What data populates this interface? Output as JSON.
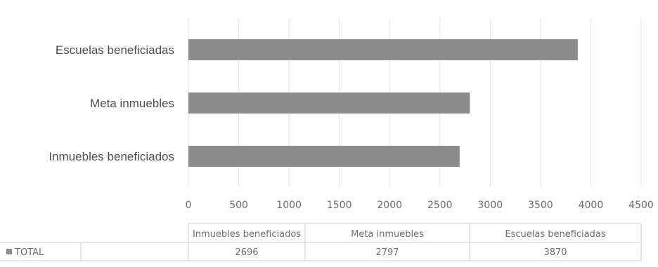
{
  "chart_data": {
    "type": "bar",
    "orientation": "horizontal",
    "title": "",
    "categories": [
      "Escuelas beneficiadas",
      "Meta inmuebles",
      "Inmuebles beneficiados"
    ],
    "series": [
      {
        "name": "TOTAL",
        "values": [
          3870,
          2797,
          2696
        ],
        "color": "#8c8c8c"
      }
    ],
    "xlim": [
      0,
      4500
    ],
    "x_ticks": [
      0,
      500,
      1000,
      1500,
      2000,
      2500,
      3000,
      3500,
      4000,
      4500
    ],
    "grid": true,
    "data_table": {
      "columns": [
        "Inmuebles beneficiados",
        "Meta inmuebles",
        "Escuelas beneficiadas"
      ],
      "rows": [
        {
          "label": "TOTAL",
          "values": [
            "2696",
            "2797",
            "3870"
          ]
        }
      ]
    }
  }
}
